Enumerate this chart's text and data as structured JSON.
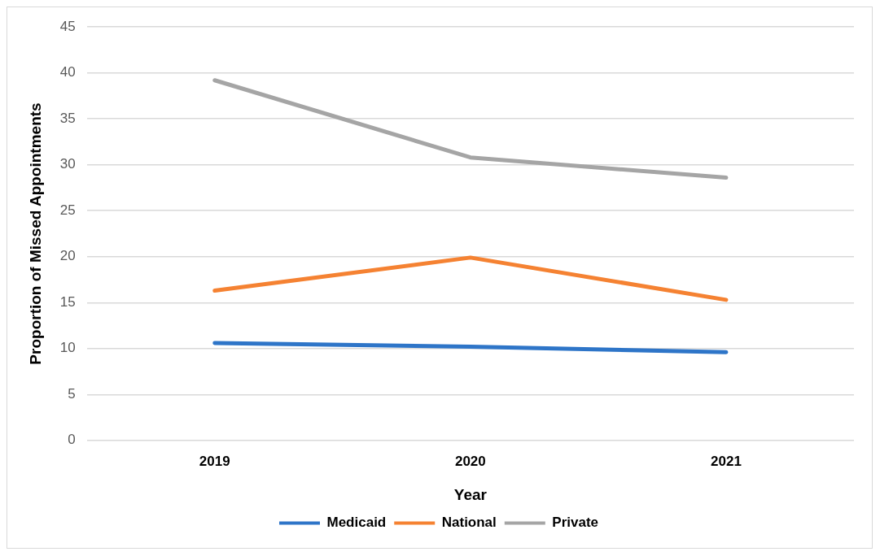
{
  "chart_data": {
    "type": "line",
    "xlabel": "Year",
    "ylabel": "Proportion of Missed Appointments",
    "categories": [
      "2019",
      "2020",
      "2021"
    ],
    "series": [
      {
        "name": "Medicaid",
        "color": "#2e75c8",
        "values": [
          10.6,
          10.2,
          9.6
        ]
      },
      {
        "name": "National",
        "color": "#f58232",
        "values": [
          16.3,
          19.9,
          15.3
        ]
      },
      {
        "name": "Private",
        "color": "#a5a5a5",
        "values": [
          39.2,
          30.8,
          28.6
        ]
      }
    ],
    "ylim": [
      0,
      45
    ],
    "yticks": [
      0,
      5,
      10,
      15,
      20,
      25,
      30,
      35,
      40,
      45
    ],
    "grid": "y",
    "legend": "bottom",
    "marker": "none",
    "line_style": "solid"
  }
}
